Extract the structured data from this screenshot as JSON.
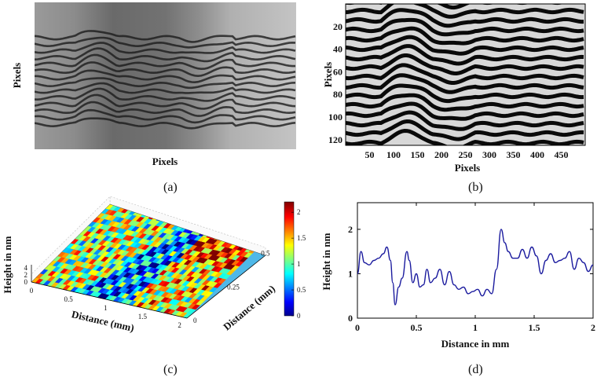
{
  "captions": {
    "a": "(a)",
    "b": "(b)",
    "c": "(c)",
    "d": "(d)"
  },
  "chart_data": [
    {
      "panel": "a",
      "type": "heatmap",
      "description_visible": "grayscale interferogram",
      "xlabel": "Pixels",
      "ylabel": "Pixels"
    },
    {
      "panel": "b",
      "type": "heatmap",
      "description_visible": "wrapped phase map",
      "xlabel": "Pixels",
      "ylabel": "Pixels",
      "xticks": [
        "50",
        "100",
        "150",
        "200",
        "250",
        "300",
        "350",
        "400",
        "450"
      ],
      "yticks": [
        "20",
        "40",
        "60",
        "80",
        "100",
        "120"
      ],
      "xlim": [
        0,
        500
      ],
      "ylim": [
        0,
        125
      ]
    },
    {
      "panel": "c",
      "type": "heatmap",
      "description_visible": "3D surface height map",
      "xlabel": "Distance (mm)",
      "ylabel": "Distance (mm)",
      "zlabel": "Height in nm",
      "xticks": [
        "0",
        "0.5",
        "1",
        "1.5",
        "2"
      ],
      "yticks": [
        "0",
        "0.25",
        "0.5"
      ],
      "zticks": [
        "0",
        "2",
        "4"
      ],
      "colorbar_ticks": [
        "0",
        "0.5",
        "1",
        "1.5",
        "2"
      ],
      "colorbar_range": [
        0,
        2.2
      ]
    },
    {
      "panel": "d",
      "type": "line",
      "xlabel": "Distance in mm",
      "ylabel": "Height in nm",
      "xlim": [
        0,
        2
      ],
      "ylim": [
        0,
        2.6
      ],
      "xticks": [
        "0",
        "0.5",
        "1",
        "1.5",
        "2"
      ],
      "yticks": [
        "0",
        "1",
        "2"
      ],
      "line_color": "#1a1a9e",
      "series": [
        {
          "x": [
            0,
            0.03,
            0.06,
            0.1,
            0.14,
            0.18,
            0.22,
            0.25,
            0.28,
            0.3,
            0.32,
            0.35,
            0.38,
            0.42,
            0.44,
            0.47,
            0.5,
            0.53,
            0.56,
            0.59,
            0.62,
            0.66,
            0.7,
            0.74,
            0.78,
            0.82,
            0.86,
            0.9,
            0.94,
            0.98,
            1.02,
            1.06,
            1.1,
            1.14,
            1.18,
            1.22,
            1.25,
            1.28,
            1.32,
            1.36,
            1.4,
            1.44,
            1.48,
            1.52,
            1.56,
            1.6,
            1.64,
            1.68,
            1.72,
            1.76,
            1.8,
            1.84,
            1.88,
            1.92,
            1.96,
            2.0
          ],
          "y": [
            1.0,
            1.5,
            1.25,
            1.2,
            1.3,
            1.35,
            1.45,
            1.6,
            1.3,
            0.8,
            0.3,
            0.7,
            0.9,
            1.5,
            1.3,
            0.8,
            1.0,
            0.7,
            0.75,
            1.1,
            0.8,
            0.9,
            1.1,
            0.75,
            1.05,
            0.75,
            0.65,
            0.7,
            0.55,
            0.6,
            0.65,
            0.5,
            0.65,
            0.55,
            1.1,
            2.0,
            1.7,
            1.5,
            1.35,
            1.35,
            1.55,
            1.35,
            1.6,
            1.4,
            1.0,
            1.3,
            1.45,
            1.25,
            1.3,
            1.35,
            1.5,
            1.1,
            1.35,
            1.25,
            1.05,
            1.2
          ]
        }
      ]
    }
  ]
}
